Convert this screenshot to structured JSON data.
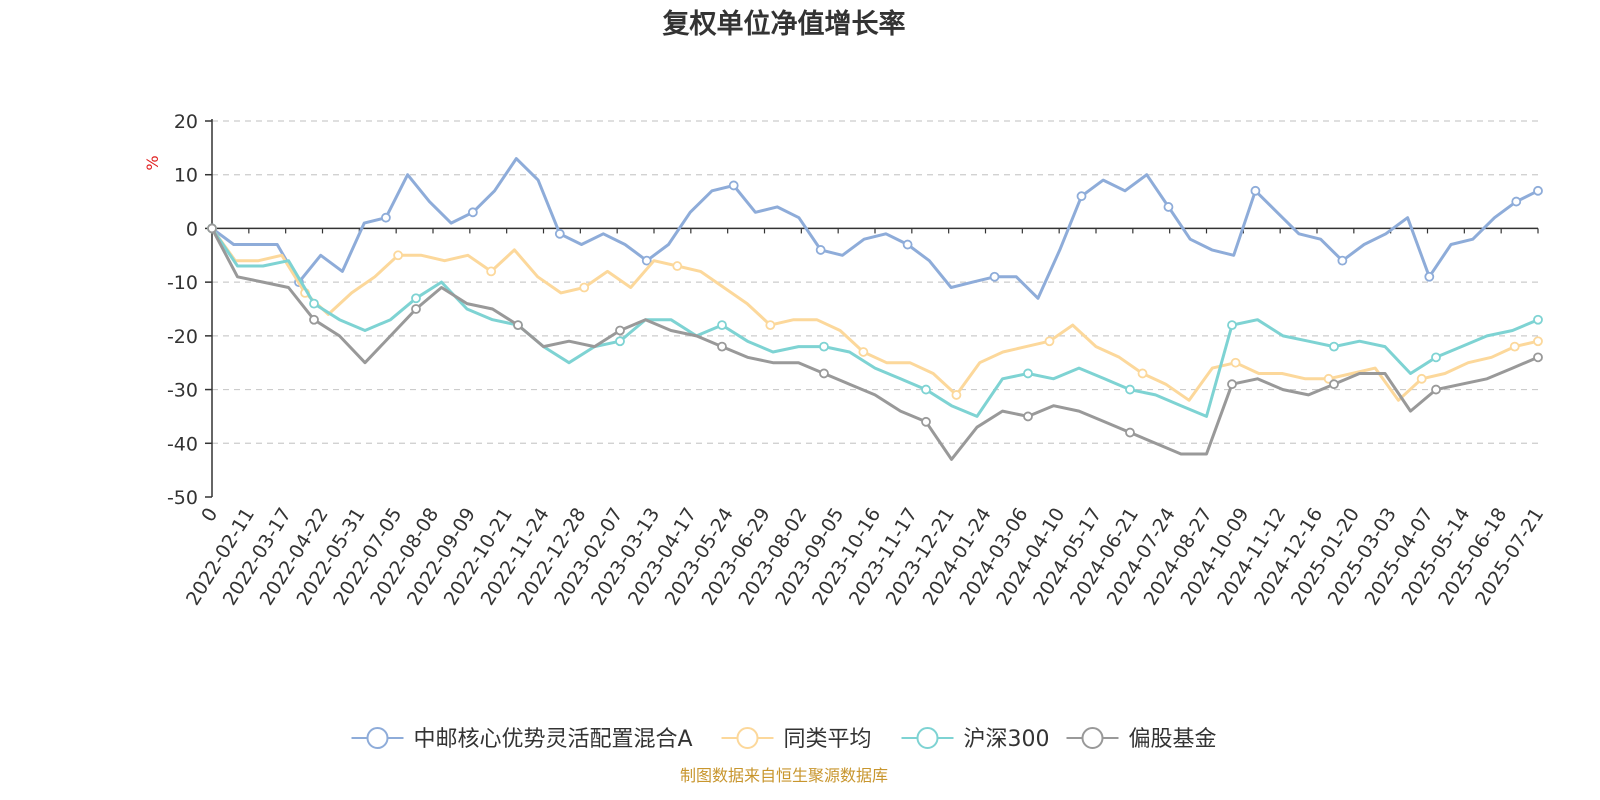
{
  "source_note": "制图数据来自恒生聚源数据库",
  "chart_data": {
    "type": "line",
    "title": "复权单位净值增长率",
    "ylabel": "%",
    "ylim": [
      -50,
      20
    ],
    "yticks": [
      20,
      10,
      0,
      -10,
      -20,
      -30,
      -40,
      -50
    ],
    "grid": true,
    "legend_position": "bottom",
    "x_labels": [
      "0",
      "2022-02-11",
      "2022-03-17",
      "2022-04-22",
      "2022-05-31",
      "2022-07-05",
      "2022-08-08",
      "2022-09-09",
      "2022-10-21",
      "2022-11-24",
      "2022-12-28",
      "2023-02-07",
      "2023-03-13",
      "2023-04-17",
      "2023-05-24",
      "2023-06-29",
      "2023-08-02",
      "2023-09-05",
      "2023-10-16",
      "2023-11-17",
      "2023-12-21",
      "2024-01-24",
      "2024-03-06",
      "2024-04-10",
      "2024-05-17",
      "2024-06-21",
      "2024-07-24",
      "2024-08-27",
      "2024-10-09",
      "2024-11-12",
      "2024-12-16",
      "2025-01-20",
      "2025-03-03",
      "2025-04-07",
      "2025-05-14",
      "2025-06-18",
      "2025-07-21"
    ],
    "series": [
      {
        "name": "中邮核心优势灵活配置混合A",
        "color": "#8eacd9",
        "values": [
          0,
          -3,
          -3,
          -3,
          -10,
          -5,
          -8,
          1,
          2,
          10,
          5,
          1,
          3,
          7,
          13,
          9,
          -1,
          -3,
          -1,
          -3,
          -6,
          -3,
          3,
          7,
          8,
          3,
          4,
          2,
          -4,
          -5,
          -2,
          -1,
          -3,
          -6,
          -11,
          -10,
          -9,
          -9,
          -13,
          -4,
          6,
          9,
          7,
          10,
          4,
          -2,
          -4,
          -5,
          7,
          3,
          -1,
          -2,
          -6,
          -3,
          -1,
          2,
          -9,
          -3,
          -2,
          2,
          5,
          7
        ]
      },
      {
        "name": "同类平均",
        "color": "#fcd89b",
        "values": [
          0,
          -6,
          -6,
          -5,
          -12,
          -16,
          -12,
          -9,
          -5,
          -5,
          -6,
          -5,
          -8,
          -4,
          -9,
          -12,
          -11,
          -8,
          -11,
          -6,
          -7,
          -8,
          -11,
          -14,
          -18,
          -17,
          -17,
          -19,
          -23,
          -25,
          -25,
          -27,
          -31,
          -25,
          -23,
          -22,
          -21,
          -18,
          -22,
          -24,
          -27,
          -29,
          -32,
          -26,
          -25,
          -27,
          -27,
          -28,
          -28,
          -27,
          -26,
          -32,
          -28,
          -27,
          -25,
          -24,
          -22,
          -21
        ]
      },
      {
        "name": "沪深300",
        "color": "#7ed3d3",
        "values": [
          0,
          -7,
          -7,
          -6,
          -14,
          -17,
          -19,
          -17,
          -13,
          -10,
          -15,
          -17,
          -18,
          -22,
          -25,
          -22,
          -21,
          -17,
          -17,
          -20,
          -18,
          -21,
          -23,
          -22,
          -22,
          -23,
          -26,
          -28,
          -30,
          -33,
          -35,
          -28,
          -27,
          -28,
          -26,
          -28,
          -30,
          -31,
          -33,
          -35,
          -18,
          -17,
          -20,
          -21,
          -22,
          -21,
          -22,
          -27,
          -24,
          -22,
          -20,
          -19,
          -17
        ]
      },
      {
        "name": "偏股基金",
        "color": "#999999",
        "values": [
          0,
          -9,
          -10,
          -11,
          -17,
          -20,
          -25,
          -20,
          -15,
          -11,
          -14,
          -15,
          -18,
          -22,
          -21,
          -22,
          -19,
          -17,
          -19,
          -20,
          -22,
          -24,
          -25,
          -25,
          -27,
          -29,
          -31,
          -34,
          -36,
          -43,
          -37,
          -34,
          -35,
          -33,
          -34,
          -36,
          -38,
          -40,
          -42,
          -42,
          -29,
          -28,
          -30,
          -31,
          -29,
          -27,
          -27,
          -34,
          -30,
          -29,
          -28,
          -26,
          -24
        ]
      }
    ]
  }
}
